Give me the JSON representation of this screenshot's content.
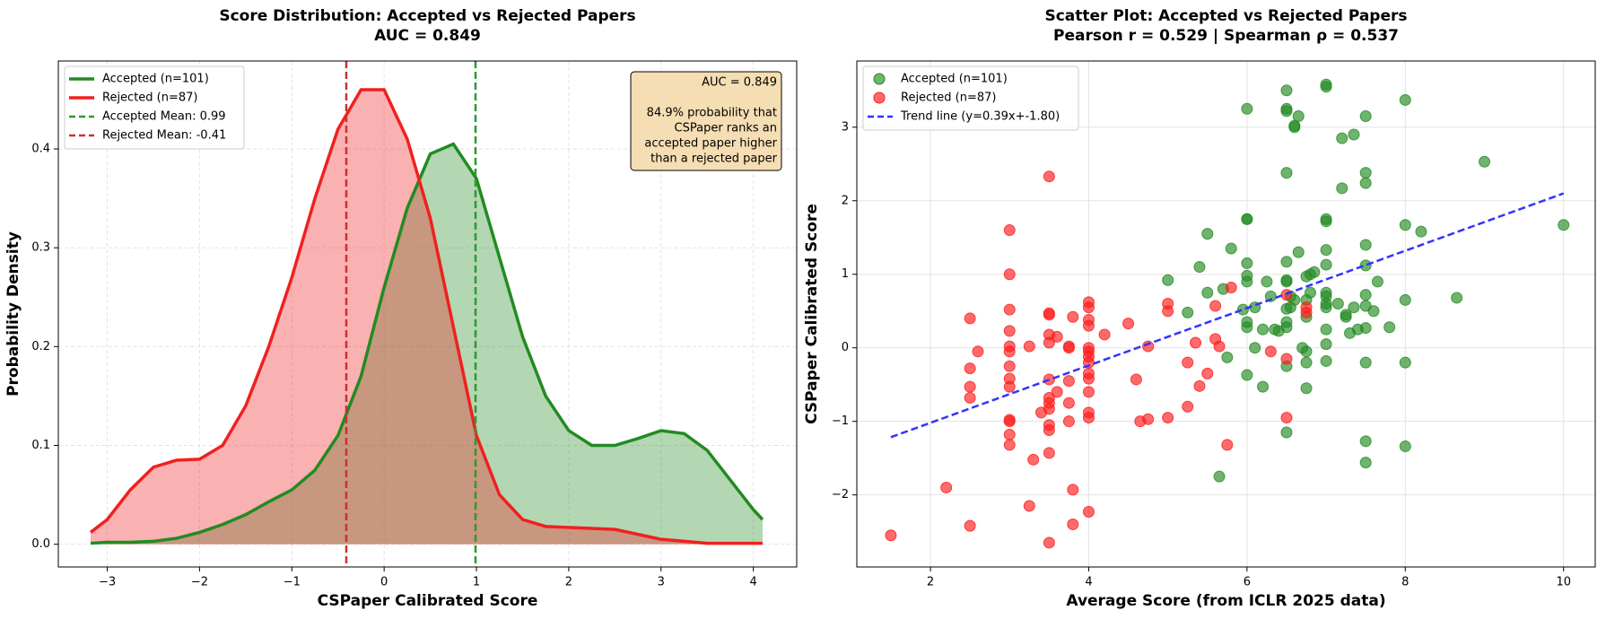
{
  "chart_data": [
    {
      "type": "area",
      "title": "Score Distribution: Accepted vs Rejected Papers",
      "subtitle": "AUC = 0.849",
      "xlabel": "CSPaper Calibrated Score",
      "ylabel": "Probability Density",
      "x": [
        -3.18,
        -3,
        -2.75,
        -2.5,
        -2.25,
        -2,
        -1.75,
        -1.5,
        -1.25,
        -1,
        -0.75,
        -0.5,
        -0.25,
        0,
        0.25,
        0.5,
        0.75,
        1,
        1.25,
        1.5,
        1.75,
        2,
        2.25,
        2.5,
        2.75,
        3,
        3.25,
        3.5,
        3.75,
        4,
        4.1
      ],
      "series": [
        {
          "name": "Accepted (n=101)",
          "color": "#228b22",
          "values": [
            0.001,
            0.002,
            0.002,
            0.003,
            0.006,
            0.012,
            0.02,
            0.03,
            0.043,
            0.055,
            0.075,
            0.11,
            0.17,
            0.26,
            0.34,
            0.395,
            0.405,
            0.37,
            0.29,
            0.21,
            0.15,
            0.115,
            0.1,
            0.1,
            0.107,
            0.115,
            0.112,
            0.095,
            0.065,
            0.035,
            0.025
          ]
        },
        {
          "name": "Rejected (n=87)",
          "color": "#f02020",
          "values": [
            0.012,
            0.025,
            0.055,
            0.078,
            0.085,
            0.086,
            0.1,
            0.14,
            0.2,
            0.27,
            0.35,
            0.42,
            0.46,
            0.46,
            0.41,
            0.33,
            0.22,
            0.11,
            0.05,
            0.025,
            0.018,
            0.017,
            0.016,
            0.015,
            0.01,
            0.005,
            0.003,
            0.001,
            0.001,
            0.001,
            0.001
          ]
        }
      ],
      "vlines": [
        {
          "name": "Accepted Mean: 0.99",
          "value": 0.99,
          "color": "#2e9a2e"
        },
        {
          "name": "Rejected Mean: -0.41",
          "value": -0.41,
          "color": "#c83232"
        }
      ],
      "annotation": [
        "AUC = 0.849",
        "84.9% probability that",
        "CSPaper ranks an",
        "accepted paper higher",
        "than a rejected paper"
      ],
      "xlim": [
        -3.53,
        4.47
      ],
      "ylim": [
        -0.023,
        0.489
      ],
      "xticks": [
        {
          "value": -3,
          "label": "−3"
        },
        {
          "value": -2,
          "label": "−2"
        },
        {
          "value": -1,
          "label": "−1"
        },
        0,
        1,
        2,
        3,
        4
      ],
      "yticks": [
        {
          "value": 0,
          "label": "0.0"
        },
        0.1,
        0.2,
        0.3,
        0.4
      ],
      "grid": true,
      "grid_style": "dashed",
      "legend": "upper left"
    },
    {
      "type": "scatter",
      "title": "Scatter Plot: Accepted vs Rejected Papers",
      "subtitle": "Pearson r = 0.529 | Spearman ρ = 0.537",
      "xlabel": "Average Score (from ICLR 2025 data)",
      "ylabel": "CSPaper Calibrated Score",
      "series": [
        {
          "name": "Accepted (n=101)",
          "color": "#228b22",
          "x": [
            10,
            9,
            8.65,
            8,
            8,
            8,
            8,
            8,
            8.2,
            7.8,
            7.65,
            7.5,
            7.5,
            7.5,
            7.5,
            7.5,
            7.5,
            7.5,
            7.5,
            7.5,
            7.5,
            7.5,
            7.35,
            7.35,
            7.3,
            7.4,
            7.2,
            7.2,
            7.25,
            7.25,
            7,
            7,
            7,
            7,
            7,
            7,
            7,
            7,
            7,
            7,
            7,
            7,
            6.8,
            6.75,
            6.75,
            6.75,
            6.75,
            6.75,
            6.75,
            6.65,
            6.6,
            6.6,
            6.65,
            6.6,
            6.55,
            6.5,
            6.5,
            6.5,
            6.5,
            6.5,
            6.5,
            6.5,
            6.5,
            6.5,
            6.5,
            6.5,
            6.5,
            6.35,
            6.25,
            6.2,
            6.2,
            6.1,
            6,
            6,
            6,
            6,
            6,
            6,
            6,
            6,
            6,
            5.8,
            5.75,
            5.7,
            5.65,
            5.5,
            5.5,
            5.4,
            5.25,
            5,
            6.85,
            6.1,
            6.4,
            7.6,
            6.55,
            6.8,
            7,
            6.3,
            5.95,
            7.15,
            6.7
          ],
          "values": [
            1.67,
            2.53,
            0.68,
            3.37,
            1.67,
            0.65,
            -0.2,
            -1.34,
            1.58,
            0.28,
            0.9,
            3.15,
            2.38,
            2.24,
            1.4,
            1.12,
            0.72,
            0.57,
            0.27,
            -0.2,
            -1.27,
            -1.56,
            2.9,
            0.55,
            0.2,
            0.25,
            2.85,
            2.17,
            0.45,
            0.42,
            3.58,
            3.55,
            1.75,
            1.72,
            1.33,
            1.13,
            0.75,
            0.7,
            0.55,
            0.25,
            0.05,
            -0.18,
            1.0,
            0.97,
            0.65,
            0.42,
            -0.05,
            -0.2,
            -0.55,
            3.15,
            3.02,
            3.0,
            1.3,
            0.65,
            0.55,
            3.5,
            3.25,
            3.22,
            2.38,
            1.17,
            0.9,
            0.92,
            0.53,
            0.35,
            0.28,
            -0.25,
            -1.15,
            0.25,
            0.9,
            0.25,
            -0.53,
            0.0,
            3.25,
            1.75,
            1.75,
            1.15,
            0.98,
            0.9,
            0.35,
            0.28,
            -0.37,
            1.35,
            -0.13,
            0.8,
            -1.75,
            1.55,
            0.75,
            1.1,
            0.48,
            0.92,
            1.03,
            0.55,
            0.23,
            0.5,
            0.7,
            0.75,
            0.6,
            0.7,
            0.52,
            0.6,
            0.0
          ]
        },
        {
          "name": "Rejected (n=87)",
          "color": "#ff1a1a",
          "x": [
            1.5,
            2.2,
            2.5,
            2.5,
            2.5,
            2.5,
            2.5,
            2.6,
            3,
            3,
            3,
            3,
            3,
            3,
            3,
            3,
            3,
            3,
            3,
            3,
            3,
            3.25,
            3.25,
            3.3,
            3.4,
            3.5,
            3.5,
            3.5,
            3.5,
            3.5,
            3.5,
            3.5,
            3.5,
            3.5,
            3.5,
            3.5,
            3.5,
            3.5,
            3.6,
            3.75,
            3.75,
            3.75,
            3.75,
            3.75,
            3.8,
            3.8,
            3.8,
            4,
            4,
            4,
            4,
            4,
            4,
            4,
            4,
            4,
            4,
            4,
            4,
            4,
            4.2,
            4.5,
            4.6,
            4.65,
            4.75,
            4.75,
            5,
            5,
            5,
            5.25,
            5.25,
            5.35,
            5.4,
            5.5,
            5.6,
            5.6,
            5.65,
            5.75,
            5.8,
            6.3,
            6.5,
            6.5,
            6.5,
            6.75,
            6.75,
            4,
            3.6
          ],
          "values": [
            -2.55,
            -1.9,
            0.4,
            -0.28,
            -0.53,
            -0.68,
            -2.42,
            -0.05,
            1.6,
            1.0,
            0.52,
            0.23,
            0.02,
            -0.05,
            -0.25,
            -0.42,
            -0.53,
            -1.0,
            -0.98,
            -1.18,
            -1.32,
            0.02,
            -2.15,
            -1.52,
            -0.88,
            2.33,
            0.47,
            0.45,
            0.18,
            0.07,
            -0.43,
            -0.68,
            -0.75,
            -0.83,
            -1.05,
            -1.12,
            -1.43,
            -2.65,
            -0.6,
            0.02,
            0.0,
            -0.45,
            -0.75,
            -1.0,
            0.42,
            -1.93,
            -2.4,
            0.62,
            0.55,
            0.38,
            0.3,
            -0.05,
            -0.12,
            -0.2,
            -0.35,
            -0.42,
            -0.6,
            -0.88,
            -0.95,
            -2.23,
            0.18,
            0.33,
            -0.43,
            -1.0,
            0.02,
            -0.97,
            0.6,
            0.5,
            -0.95,
            -0.2,
            -0.8,
            0.07,
            -0.52,
            -0.35,
            0.57,
            0.12,
            0.02,
            -1.32,
            0.82,
            -0.05,
            0.72,
            -0.15,
            -0.95,
            0.55,
            0.48,
            0.0,
            0.15
          ]
        }
      ],
      "trend": {
        "name": "Trend line (y=0.39x+-1.80)",
        "color": "#3333ff",
        "x": [
          1.5,
          10
        ],
        "values": [
          -1.215,
          2.1
        ]
      },
      "xlim": [
        1.07,
        10.4
      ],
      "ylim": [
        -2.98,
        3.9
      ],
      "xticks": [
        2,
        4,
        6,
        8,
        10
      ],
      "yticks": [
        {
          "value": -2,
          "label": "−2"
        },
        {
          "value": -1,
          "label": "−1"
        },
        0,
        1,
        2,
        3
      ],
      "grid": true,
      "grid_style": "solid",
      "legend": "upper left"
    }
  ]
}
